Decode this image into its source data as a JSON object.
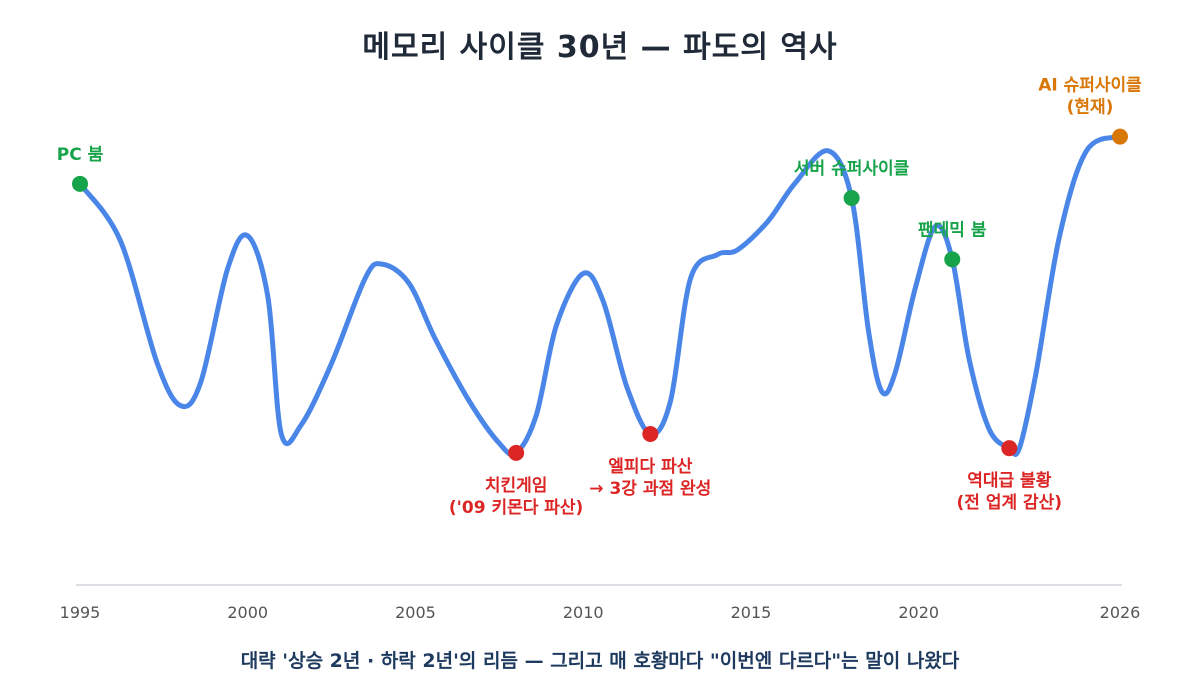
{
  "title": "메모리 사이클 30년 — 파도의 역사",
  "caption": "대략 '상승 2년 · 하락 2년'의 리듬 — 그리고 매 호황마다 \"이번엔 다르다\"는 말이 나왔다",
  "colors": {
    "line": "#4a86e8",
    "peak": "#16a34a",
    "trough": "#dc2626",
    "current": "#d97706",
    "axis": "#d1d5db",
    "title": "#1f2937",
    "caption": "#1e3a5f"
  },
  "chart_data": {
    "type": "line",
    "title": "메모리 사이클 30년 — 파도의 역사",
    "xlabel": "",
    "ylabel": "",
    "y_axis_shown": false,
    "xlim": [
      1995,
      2026
    ],
    "ylim": [
      0,
      100
    ],
    "x_ticks": [
      1995,
      2000,
      2005,
      2010,
      2015,
      2020,
      2026
    ],
    "grid": false,
    "series": [
      {
        "x": [
          1995,
          1996.2,
          1997.3,
          1998,
          1998.6,
          1999.4,
          2000,
          2000.6,
          2001,
          2001.6,
          2002.5,
          2003.5,
          2004,
          2004.8,
          2005.6,
          2006.6,
          2007.5,
          2008,
          2008.6,
          2009.2,
          2010,
          2010.6,
          2011.3,
          2012,
          2012.6,
          2013.2,
          2014,
          2014.6,
          2015.5,
          2016.3,
          2017.3,
          2018,
          2018.5,
          2018.9,
          2019.3,
          2019.9,
          2020.5,
          2021,
          2021.5,
          2022.1,
          2022.7,
          2023,
          2023.5,
          2024.2,
          2025,
          2026
        ],
        "values": [
          78,
          66,
          40,
          31,
          36,
          60,
          67,
          54,
          25,
          27,
          40,
          58,
          61,
          57,
          45,
          32,
          23,
          21,
          29,
          48,
          59,
          53,
          35,
          25,
          32,
          58,
          63,
          64,
          70,
          78,
          85,
          75,
          47,
          34,
          38,
          56,
          69,
          62,
          41,
          26,
          22,
          22,
          38,
          67,
          85,
          88
        ]
      }
    ],
    "annotations": [
      {
        "x": 1995,
        "y": 78,
        "text": [
          "PC 붐"
        ],
        "kind": "peak",
        "pos": "above"
      },
      {
        "x": 2008,
        "y": 21,
        "text": [
          "치킨게임",
          "('09 키몬다 파산)"
        ],
        "kind": "trough",
        "pos": "below"
      },
      {
        "x": 2012,
        "y": 25,
        "text": [
          "엘피다 파산",
          "→ 3강 과점 완성"
        ],
        "kind": "trough",
        "pos": "below"
      },
      {
        "x": 2018,
        "y": 75,
        "text": [
          "서버 슈퍼사이클"
        ],
        "kind": "peak",
        "pos": "above"
      },
      {
        "x": 2021,
        "y": 62,
        "text": [
          "팬데믹 붐"
        ],
        "kind": "peak",
        "pos": "above"
      },
      {
        "x": 2022.7,
        "y": 22,
        "text": [
          "역대급 불황",
          "(전 업계 감산)"
        ],
        "kind": "trough",
        "pos": "below"
      },
      {
        "x": 2026,
        "y": 88,
        "text": [
          "AI 슈퍼사이클",
          "(현재)"
        ],
        "kind": "current",
        "pos": "above"
      }
    ]
  }
}
